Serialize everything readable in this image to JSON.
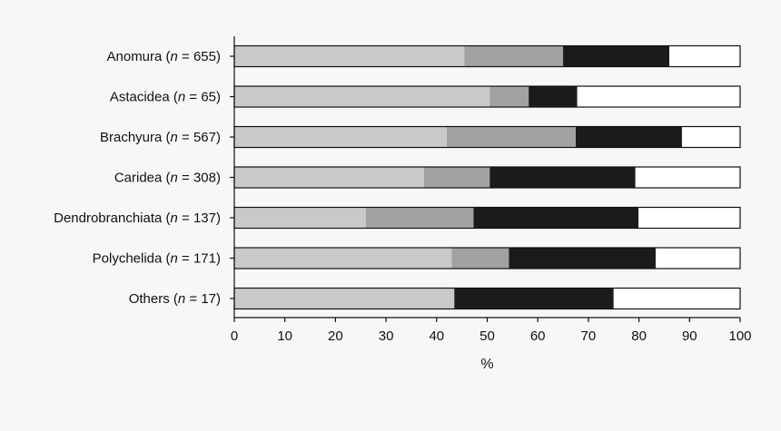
{
  "chart_data": {
    "type": "bar",
    "orientation": "horizontal",
    "stacked": true,
    "title": "",
    "xlabel": "%",
    "ylabel": "",
    "xlim": [
      0,
      100
    ],
    "x_ticks": [
      "0",
      "10",
      "20",
      "30",
      "40",
      "50",
      "60",
      "70",
      "80",
      "90",
      "100"
    ],
    "grid": false,
    "legend": "none",
    "categories": [
      {
        "name": "Anomura",
        "n_prefix": " (",
        "n_italic": "n",
        "n_suffix": " = 655)"
      },
      {
        "name": "Astacidea",
        "n_prefix": " (",
        "n_italic": "n",
        "n_suffix": " = 65)"
      },
      {
        "name": "Brachyura",
        "n_prefix": " (",
        "n_italic": "n",
        "n_suffix": " = 567)"
      },
      {
        "name": "Caridea",
        "n_prefix": " (",
        "n_italic": "n",
        "n_suffix": " = 308)"
      },
      {
        "name": "Dendrobranchiata",
        "n_prefix": " (",
        "n_italic": "n",
        "n_suffix": " = 137)"
      },
      {
        "name": "Polychelida",
        "n_prefix": " (",
        "n_italic": "n",
        "n_suffix": " = 171)"
      },
      {
        "name": "Others",
        "n_prefix": " (",
        "n_italic": "n",
        "n_suffix": " = 17)"
      }
    ],
    "series": [
      {
        "color": "#c9c9c9",
        "values": [
          45.5,
          50.5,
          42.0,
          37.5,
          26.0,
          43.0,
          43.5
        ]
      },
      {
        "color": "#a2a2a2",
        "values": [
          19.5,
          7.7,
          25.5,
          13.0,
          21.3,
          11.3,
          0.0
        ]
      },
      {
        "color": "#1c1a1a",
        "values": [
          21.0,
          9.6,
          21.0,
          28.8,
          32.6,
          29.0,
          31.5
        ]
      },
      {
        "color": "#ffffff",
        "values": [
          14.0,
          32.2,
          11.5,
          20.7,
          20.1,
          16.7,
          25.0
        ]
      }
    ]
  }
}
